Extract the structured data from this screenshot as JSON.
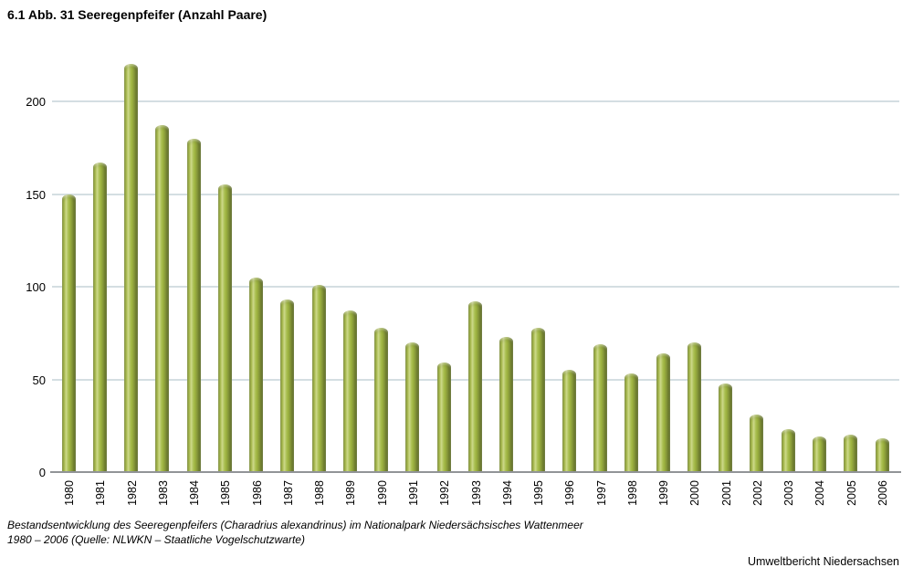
{
  "title": "6.1 Abb. 31 Seeregenpfeifer (Anzahl Paare)",
  "chart_data": {
    "type": "bar",
    "title": "6.1 Abb. 31 Seeregenpfeifer (Anzahl Paare)",
    "categories": [
      "1980",
      "1981",
      "1982",
      "1983",
      "1984",
      "1985",
      "1986",
      "1987",
      "1988",
      "1989",
      "1990",
      "1991",
      "1992",
      "1993",
      "1994",
      "1995",
      "1996",
      "1997",
      "1998",
      "1999",
      "2000",
      "2001",
      "2002",
      "2003",
      "2004",
      "2005",
      "2006"
    ],
    "values": [
      150,
      167,
      220,
      187,
      180,
      155,
      105,
      93,
      101,
      87,
      78,
      70,
      59,
      92,
      73,
      78,
      55,
      69,
      53,
      64,
      70,
      48,
      31,
      23,
      19,
      20,
      18
    ],
    "xlabel": "",
    "ylabel": "",
    "yticks": [
      0,
      50,
      100,
      150,
      200
    ],
    "ylim": [
      0,
      225
    ],
    "grid": true,
    "legend": "none"
  },
  "colors": {
    "bar_main": "#9cb23f",
    "bar_light": "#cdd98a",
    "bar_mid_dark": "#87993a",
    "bar_edge_left": "#7a8a33",
    "bar_edge_right": "#5f6e28",
    "gridline": "#d4dee2",
    "axis_line": "#919497",
    "text": "#000000"
  },
  "caption": {
    "line1": "Bestandsentwicklung des Seeregenpfeifers (Charadrius alexandrinus) im Nationalpark Niedersächsisches Wattenmeer",
    "line2": "1980 – 2006 (Quelle: NLWKN – Staatliche Vogelschutzwarte)"
  },
  "footer": "Umweltbericht Niedersachsen"
}
